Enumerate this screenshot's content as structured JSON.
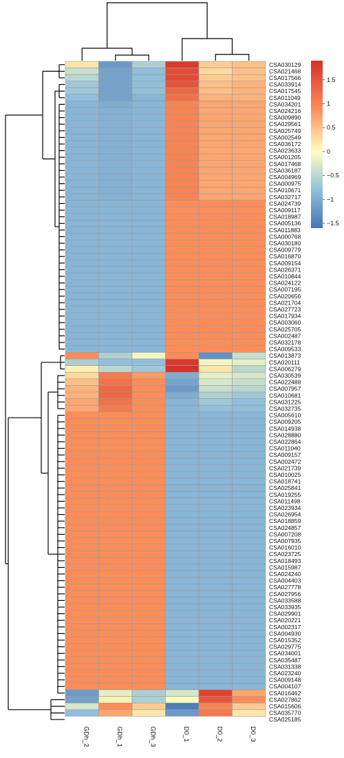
{
  "chart_data": {
    "type": "heatmap",
    "title": "",
    "columns": [
      "GDh_2",
      "GDh_1",
      "GDh_3",
      "D0_1",
      "D0_2",
      "D0_3"
    ],
    "rows": [
      "CSA030129",
      "CSA021468",
      "CSA017566",
      "CSA033914",
      "CSA017545",
      "CSA011049",
      "CSA034201",
      "CSA024216",
      "CSA009890",
      "CSA029561",
      "CSA025749",
      "CSA002549",
      "CSA036172",
      "CSA023633",
      "CSA001205",
      "CSA017468",
      "CSA036187",
      "CSA004969",
      "CSA000975",
      "CSA010671",
      "CSA032717",
      "CSA024739",
      "CSA009117",
      "CSA018987",
      "CSA005136",
      "CSA011883",
      "CSA000768",
      "CSA030180",
      "CSA009779",
      "CSA016870",
      "CSA009154",
      "CSA026371",
      "CSA010844",
      "CSA024122",
      "CSA007195",
      "CSA020656",
      "CSA021704",
      "CSA027723",
      "CSA017934",
      "CSA003060",
      "CSA025705",
      "CSA002487",
      "CSA032178",
      "CSA009533",
      "CSA013873",
      "CSA020111",
      "CSA006279",
      "CSA030539",
      "CSA022488",
      "CSA007957",
      "CSA010681",
      "CSA031225",
      "CSA032735",
      "CSA005610",
      "CSA009205",
      "CSA014938",
      "CSA028880",
      "CSA022864",
      "CSA011040",
      "CSA009157",
      "CSA002472",
      "CSA021739",
      "CSA010025",
      "CSA018741",
      "CSA025841",
      "CSA019255",
      "CSA011498",
      "CSA023934",
      "CSA026954",
      "CSA018859",
      "CSA024857",
      "CSA007208",
      "CSA007935",
      "CSA016010",
      "CSA023725",
      "CSA018493",
      "CSA015987",
      "CSA024240",
      "CSA004403",
      "CSA027778",
      "CSA027956",
      "CSA033588",
      "CSA033935",
      "CSA029901",
      "CSA020221",
      "CSA002317",
      "CSA004930",
      "CSA015352",
      "CSA029775",
      "CSA034001",
      "CSA035487",
      "CSA031338",
      "CSA023240",
      "CSA009148",
      "CSA004107",
      "CSA016462",
      "CSA027862",
      "CSA015606",
      "CSA035770",
      "CSA025185"
    ],
    "values": [
      [
        0.2,
        -1.2,
        -0.6,
        1.8,
        0.4,
        0.5
      ],
      [
        -0.4,
        -1.1,
        -0.8,
        1.6,
        0.3,
        0.5
      ],
      [
        -0.5,
        -1.1,
        -0.8,
        1.6,
        0.4,
        0.5
      ],
      [
        -0.7,
        -1.1,
        -0.8,
        1.5,
        0.5,
        0.6
      ],
      [
        -0.7,
        -1.1,
        -0.8,
        1.3,
        0.5,
        0.6
      ],
      [
        -0.8,
        -1.1,
        -0.9,
        1.2,
        0.6,
        0.6
      ],
      [
        -0.9,
        -1.0,
        -0.9,
        1.0,
        0.7,
        0.7
      ],
      [
        -0.9,
        -0.95,
        -0.9,
        1.0,
        0.7,
        0.7
      ],
      [
        -0.9,
        -0.95,
        -0.9,
        1.0,
        0.7,
        0.7
      ],
      [
        -0.9,
        -0.95,
        -0.9,
        1.0,
        0.7,
        0.7
      ],
      [
        -0.9,
        -0.95,
        -0.9,
        1.0,
        0.7,
        0.7
      ],
      [
        -0.9,
        -0.95,
        -0.9,
        1.0,
        0.7,
        0.7
      ],
      [
        -0.9,
        -0.95,
        -0.9,
        1.0,
        0.7,
        0.7
      ],
      [
        -0.9,
        -0.95,
        -0.9,
        1.0,
        0.7,
        0.7
      ],
      [
        -0.9,
        -0.95,
        -0.9,
        1.0,
        0.7,
        0.7
      ],
      [
        -0.9,
        -0.95,
        -0.9,
        1.0,
        0.7,
        0.7
      ],
      [
        -0.9,
        -0.95,
        -0.9,
        1.0,
        0.7,
        0.7
      ],
      [
        -0.9,
        -0.95,
        -0.9,
        1.0,
        0.7,
        0.7
      ],
      [
        -0.9,
        -0.95,
        -0.9,
        1.0,
        0.7,
        0.7
      ],
      [
        -0.9,
        -0.95,
        -0.9,
        1.0,
        0.7,
        0.7
      ],
      [
        -0.9,
        -0.95,
        -0.9,
        1.0,
        0.7,
        0.7
      ],
      [
        -0.9,
        -0.9,
        -0.9,
        0.9,
        0.9,
        0.9
      ],
      [
        -0.9,
        -0.9,
        -0.9,
        0.9,
        0.9,
        0.9
      ],
      [
        -0.9,
        -0.9,
        -0.9,
        0.9,
        0.9,
        0.9
      ],
      [
        -0.9,
        -0.9,
        -0.9,
        0.9,
        0.9,
        0.9
      ],
      [
        -0.9,
        -0.9,
        -0.9,
        0.9,
        0.9,
        0.9
      ],
      [
        -0.9,
        -0.9,
        -0.9,
        0.9,
        0.9,
        0.9
      ],
      [
        -0.9,
        -0.9,
        -0.9,
        0.9,
        0.9,
        0.9
      ],
      [
        -0.9,
        -0.9,
        -0.9,
        0.9,
        0.9,
        0.9
      ],
      [
        -0.9,
        -0.9,
        -0.9,
        0.9,
        0.9,
        0.9
      ],
      [
        -0.9,
        -0.9,
        -0.9,
        0.9,
        0.9,
        0.9
      ],
      [
        -0.9,
        -0.9,
        -0.9,
        0.9,
        0.9,
        0.9
      ],
      [
        -0.9,
        -0.9,
        -0.9,
        0.9,
        0.9,
        0.9
      ],
      [
        -0.9,
        -0.9,
        -0.9,
        0.9,
        0.9,
        0.9
      ],
      [
        -0.9,
        -0.9,
        -0.9,
        0.9,
        0.9,
        0.9
      ],
      [
        -0.9,
        -0.9,
        -0.9,
        0.9,
        0.9,
        0.9
      ],
      [
        -0.9,
        -0.9,
        -0.9,
        0.9,
        0.9,
        0.9
      ],
      [
        -0.9,
        -0.9,
        -0.9,
        0.9,
        0.9,
        0.9
      ],
      [
        -0.9,
        -0.9,
        -0.9,
        0.9,
        0.9,
        0.9
      ],
      [
        -0.9,
        -0.9,
        -0.9,
        0.9,
        0.9,
        0.9
      ],
      [
        -0.9,
        -0.9,
        -0.9,
        0.9,
        0.9,
        0.9
      ],
      [
        -0.9,
        -0.9,
        -0.9,
        0.9,
        0.9,
        0.9
      ],
      [
        -0.9,
        -0.9,
        -0.9,
        0.9,
        0.9,
        0.9
      ],
      [
        -0.9,
        -0.9,
        -0.9,
        0.9,
        0.9,
        0.9
      ],
      [
        0.9,
        -0.6,
        -0.1,
        0.9,
        -1.3,
        -0.4
      ],
      [
        -0.6,
        -0.8,
        -0.8,
        1.8,
        -0.1,
        -0.2
      ],
      [
        0.1,
        -0.5,
        -0.7,
        1.9,
        0.2,
        -0.5
      ],
      [
        0.3,
        1.1,
        0.8,
        -1.0,
        -0.2,
        -0.3
      ],
      [
        0.5,
        1.2,
        0.9,
        -1.1,
        -0.3,
        -0.4
      ],
      [
        0.6,
        1.3,
        0.9,
        -1.2,
        -0.4,
        -0.5
      ],
      [
        0.6,
        1.3,
        0.9,
        -1.0,
        -0.6,
        -0.7
      ],
      [
        0.7,
        1.2,
        0.9,
        -0.9,
        -0.7,
        -0.8
      ],
      [
        0.7,
        1.1,
        0.9,
        -0.9,
        -0.8,
        -0.8
      ],
      [
        0.9,
        0.9,
        0.9,
        -0.9,
        -0.9,
        -0.9
      ],
      [
        0.9,
        0.9,
        0.9,
        -0.9,
        -0.9,
        -0.9
      ],
      [
        0.9,
        0.9,
        0.9,
        -0.9,
        -0.9,
        -0.9
      ],
      [
        0.9,
        0.9,
        0.9,
        -0.9,
        -0.9,
        -0.9
      ],
      [
        0.9,
        0.9,
        0.9,
        -0.9,
        -0.9,
        -0.9
      ],
      [
        0.9,
        0.9,
        0.9,
        -0.9,
        -0.9,
        -0.9
      ],
      [
        0.9,
        0.9,
        0.9,
        -0.9,
        -0.9,
        -0.9
      ],
      [
        0.9,
        0.9,
        0.9,
        -0.9,
        -0.9,
        -0.9
      ],
      [
        0.9,
        0.9,
        0.9,
        -0.9,
        -0.9,
        -0.9
      ],
      [
        0.9,
        0.9,
        0.9,
        -0.9,
        -0.9,
        -0.9
      ],
      [
        0.9,
        0.9,
        0.9,
        -0.9,
        -0.9,
        -0.9
      ],
      [
        0.9,
        0.9,
        0.9,
        -0.9,
        -0.9,
        -0.9
      ],
      [
        0.9,
        0.9,
        0.9,
        -0.9,
        -0.9,
        -0.9
      ],
      [
        0.9,
        0.9,
        0.9,
        -0.9,
        -0.9,
        -0.9
      ],
      [
        0.9,
        0.9,
        0.9,
        -0.9,
        -0.9,
        -0.9
      ],
      [
        0.9,
        0.9,
        0.9,
        -0.9,
        -0.9,
        -0.9
      ],
      [
        0.9,
        0.9,
        0.9,
        -0.9,
        -0.9,
        -0.9
      ],
      [
        0.9,
        0.9,
        0.9,
        -0.9,
        -0.9,
        -0.9
      ],
      [
        0.9,
        0.9,
        0.9,
        -0.9,
        -0.9,
        -0.9
      ],
      [
        0.9,
        0.9,
        0.9,
        -0.9,
        -0.9,
        -0.9
      ],
      [
        0.9,
        0.9,
        0.9,
        -0.9,
        -0.9,
        -0.9
      ],
      [
        0.9,
        0.9,
        0.9,
        -0.9,
        -0.9,
        -0.9
      ],
      [
        0.9,
        0.9,
        0.9,
        -0.9,
        -0.9,
        -0.9
      ],
      [
        0.9,
        0.9,
        0.9,
        -0.9,
        -0.9,
        -0.9
      ],
      [
        0.9,
        0.9,
        0.9,
        -0.9,
        -0.9,
        -0.9
      ],
      [
        0.9,
        0.9,
        0.9,
        -0.9,
        -0.9,
        -0.9
      ],
      [
        0.9,
        0.9,
        0.9,
        -0.9,
        -0.9,
        -0.9
      ],
      [
        0.9,
        0.9,
        0.9,
        -0.9,
        -0.9,
        -0.9
      ],
      [
        0.9,
        0.9,
        0.9,
        -0.9,
        -0.9,
        -0.9
      ],
      [
        0.9,
        0.9,
        0.9,
        -0.9,
        -0.9,
        -0.9
      ],
      [
        0.9,
        0.9,
        0.9,
        -0.9,
        -0.9,
        -0.9
      ],
      [
        0.9,
        0.9,
        0.9,
        -0.9,
        -0.9,
        -0.9
      ],
      [
        0.9,
        0.9,
        0.9,
        -0.9,
        -0.9,
        -0.9
      ],
      [
        0.9,
        0.9,
        0.9,
        -0.9,
        -0.9,
        -0.9
      ],
      [
        0.9,
        0.9,
        0.9,
        -0.9,
        -0.9,
        -0.9
      ],
      [
        0.9,
        0.9,
        0.9,
        -0.9,
        -0.9,
        -0.9
      ],
      [
        0.9,
        0.9,
        0.9,
        -0.9,
        -0.9,
        -0.9
      ],
      [
        0.9,
        0.9,
        0.9,
        -0.9,
        -0.9,
        -0.9
      ],
      [
        0.9,
        0.9,
        0.9,
        -0.9,
        -0.9,
        -0.9
      ],
      [
        0.9,
        0.9,
        0.9,
        -0.9,
        -0.9,
        -0.9
      ],
      [
        0.9,
        0.9,
        0.9,
        -0.9,
        -0.9,
        -0.9
      ],
      [
        0.9,
        0.9,
        0.9,
        -0.9,
        -0.9,
        -0.9
      ],
      [
        -1.2,
        -0.2,
        -0.6,
        -0.3,
        1.7,
        0.7
      ],
      [
        -1.1,
        0.1,
        -0.6,
        0.0,
        1.5,
        0.9
      ],
      [
        -0.3,
        0.9,
        0.4,
        -1.5,
        1.0,
        0.4
      ],
      [
        -0.8,
        0.7,
        0.2,
        -1.2,
        1.1,
        0.2
      ]
    ],
    "legend": {
      "ticks": [
        1.5,
        1,
        0.5,
        0,
        -0.5,
        -1,
        -1.5
      ],
      "tick_labels": [
        "1.5",
        "1",
        "0.5",
        "0",
        "−0.5",
        "−1",
        "−1.5"
      ],
      "range": [
        -1.6,
        1.9
      ],
      "placement": "top-right"
    },
    "color_stops": [
      "#4575b4",
      "#91bfdb",
      "#ffffbf",
      "#fc8d59",
      "#d73027"
    ],
    "color_domain": [
      -1.6,
      -0.8,
      0.0,
      0.9,
      1.9
    ],
    "cell_border_color": "#9a9a9a",
    "row_dendrogram": true,
    "column_dendrogram": true
  }
}
